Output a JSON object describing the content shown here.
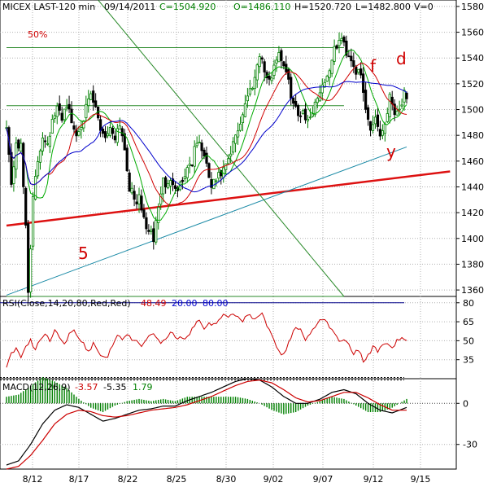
{
  "colors": {
    "up": "#008000",
    "down": "#000000",
    "sma_short": "#00aa00",
    "sma_mid": "#d00000",
    "sma_long": "#0000cc",
    "support_red": "#dd1111",
    "trend_blue": "#1a8aa6",
    "channel_green": "#2a8a2a",
    "rsi": "#cc0000",
    "macd": "#000000",
    "signal": "#cc0000",
    "hist": "#008000",
    "grid": "#b0b0b0",
    "ref_blue": "#000088"
  },
  "header": {
    "symbol": "MICEX LAST-120 min",
    "date": "09/14/2011",
    "close": "C=1504.920",
    "open": "O=1486.110",
    "high": "H=1520.720",
    "low": "L=1482.800",
    "volume": "V=0"
  },
  "annotations": {
    "pct": "50%",
    "wave5": "5",
    "wave_f": "f",
    "wave_d": "d",
    "wave_y": "y"
  },
  "chart_data": [
    {
      "type": "candlestick",
      "title": "MICEX LAST-120 min",
      "x_ticks": [
        "8/12",
        "8/17",
        "8/22",
        "8/25",
        "8/30",
        "9/02",
        "9/07",
        "9/12",
        "9/15"
      ],
      "y_ticks": [
        1360,
        1380,
        1400,
        1420,
        1440,
        1460,
        1480,
        1500,
        1520,
        1540,
        1560,
        1580
      ],
      "ylim": [
        1355,
        1585
      ],
      "grid": true,
      "anchors": [
        [
          0,
          1490
        ],
        [
          2,
          1440
        ],
        [
          4,
          1475
        ],
        [
          6,
          1470
        ],
        [
          8,
          1410
        ],
        [
          9,
          1360
        ],
        [
          11,
          1430
        ],
        [
          13,
          1460
        ],
        [
          15,
          1480
        ],
        [
          17,
          1475
        ],
        [
          19,
          1490
        ],
        [
          21,
          1500
        ],
        [
          23,
          1495
        ],
        [
          25,
          1505
        ],
        [
          27,
          1490
        ],
        [
          29,
          1480
        ],
        [
          31,
          1490
        ],
        [
          33,
          1500
        ],
        [
          35,
          1510
        ],
        [
          37,
          1500
        ],
        [
          39,
          1485
        ],
        [
          41,
          1480
        ],
        [
          43,
          1485
        ],
        [
          45,
          1480
        ],
        [
          47,
          1490
        ],
        [
          49,
          1470
        ],
        [
          51,
          1440
        ],
        [
          53,
          1430
        ],
        [
          55,
          1430
        ],
        [
          57,
          1415
        ],
        [
          59,
          1405
        ],
        [
          61,
          1400
        ],
        [
          63,
          1425
        ],
        [
          65,
          1445
        ],
        [
          67,
          1440
        ],
        [
          69,
          1445
        ],
        [
          71,
          1440
        ],
        [
          73,
          1445
        ],
        [
          75,
          1455
        ],
        [
          77,
          1460
        ],
        [
          79,
          1475
        ],
        [
          81,
          1470
        ],
        [
          83,
          1455
        ],
        [
          85,
          1440
        ],
        [
          87,
          1445
        ],
        [
          89,
          1450
        ],
        [
          91,
          1455
        ],
        [
          93,
          1465
        ],
        [
          95,
          1480
        ],
        [
          97,
          1490
        ],
        [
          99,
          1505
        ],
        [
          101,
          1515
        ],
        [
          103,
          1525
        ],
        [
          105,
          1545
        ],
        [
          107,
          1530
        ],
        [
          109,
          1520
        ],
        [
          111,
          1535
        ],
        [
          113,
          1545
        ],
        [
          115,
          1535
        ],
        [
          117,
          1520
        ],
        [
          119,
          1505
        ],
        [
          121,
          1495
        ],
        [
          123,
          1500
        ],
        [
          125,
          1490
        ],
        [
          127,
          1500
        ],
        [
          129,
          1510
        ],
        [
          131,
          1520
        ],
        [
          133,
          1525
        ],
        [
          135,
          1540
        ],
        [
          137,
          1550
        ],
        [
          139,
          1555
        ],
        [
          141,
          1545
        ],
        [
          143,
          1540
        ],
        [
          145,
          1530
        ],
        [
          147,
          1525
        ],
        [
          149,
          1500
        ],
        [
          151,
          1485
        ],
        [
          153,
          1495
        ],
        [
          155,
          1480
        ],
        [
          157,
          1490
        ],
        [
          159,
          1510
        ],
        [
          161,
          1500
        ],
        [
          163,
          1500
        ],
        [
          165,
          1512
        ],
        [
          166,
          1505
        ]
      ],
      "annotation_lines": [
        {
          "name": "resistance-1548",
          "from": [
            0,
            1548
          ],
          "to": [
            140,
            1548
          ]
        },
        {
          "name": "resistance-1503",
          "from": [
            0,
            1503
          ],
          "to": [
            140,
            1503
          ]
        },
        {
          "name": "base-1355",
          "from": [
            0,
            1355
          ],
          "to": [
            140,
            1355
          ]
        },
        {
          "name": "support-red",
          "from": [
            0,
            1410
          ],
          "to": [
            184,
            1452
          ]
        },
        {
          "name": "trend-blue",
          "from": [
            0,
            1356
          ],
          "to": [
            166,
            1471
          ]
        },
        {
          "name": "channel-diagonal",
          "from": [
            38,
            1585
          ],
          "to": [
            140,
            1355
          ]
        }
      ]
    },
    {
      "type": "line",
      "title": "RSI(Close,14,20,80,Red,Red)",
      "value": "48.49",
      "lower_label": "20.00",
      "upper_label": "80.00",
      "y_ticks": [
        35,
        50,
        65,
        80
      ],
      "ylim": [
        20,
        85
      ],
      "anchors": [
        [
          0,
          28
        ],
        [
          2,
          40
        ],
        [
          4,
          43
        ],
        [
          6,
          38
        ],
        [
          8,
          47
        ],
        [
          10,
          50
        ],
        [
          12,
          42
        ],
        [
          14,
          52
        ],
        [
          16,
          56
        ],
        [
          18,
          49
        ],
        [
          20,
          59
        ],
        [
          22,
          52
        ],
        [
          24,
          46
        ],
        [
          26,
          56
        ],
        [
          28,
          59
        ],
        [
          30,
          53
        ],
        [
          32,
          48
        ],
        [
          34,
          41
        ],
        [
          36,
          48
        ],
        [
          38,
          42
        ],
        [
          40,
          37
        ],
        [
          42,
          38
        ],
        [
          44,
          46
        ],
        [
          46,
          55
        ],
        [
          48,
          52
        ],
        [
          50,
          56
        ],
        [
          52,
          51
        ],
        [
          54,
          50
        ],
        [
          56,
          46
        ],
        [
          58,
          52
        ],
        [
          60,
          56
        ],
        [
          62,
          53
        ],
        [
          64,
          48
        ],
        [
          66,
          51
        ],
        [
          68,
          57
        ],
        [
          70,
          53
        ],
        [
          72,
          52
        ],
        [
          74,
          51
        ],
        [
          76,
          56
        ],
        [
          78,
          63
        ],
        [
          80,
          66
        ],
        [
          82,
          60
        ],
        [
          84,
          64
        ],
        [
          86,
          63
        ],
        [
          88,
          67
        ],
        [
          90,
          71
        ],
        [
          92,
          69
        ],
        [
          94,
          72
        ],
        [
          96,
          69
        ],
        [
          98,
          65
        ],
        [
          100,
          71
        ],
        [
          102,
          68
        ],
        [
          104,
          69
        ],
        [
          106,
          71
        ],
        [
          108,
          62
        ],
        [
          110,
          55
        ],
        [
          112,
          44
        ],
        [
          114,
          39
        ],
        [
          116,
          42
        ],
        [
          118,
          53
        ],
        [
          120,
          61
        ],
        [
          122,
          58
        ],
        [
          124,
          51
        ],
        [
          126,
          55
        ],
        [
          128,
          61
        ],
        [
          130,
          68
        ],
        [
          132,
          66
        ],
        [
          134,
          61
        ],
        [
          136,
          56
        ],
        [
          138,
          50
        ],
        [
          140,
          52
        ],
        [
          142,
          47
        ],
        [
          144,
          39
        ],
        [
          146,
          43
        ],
        [
          148,
          34
        ],
        [
          150,
          38
        ],
        [
          152,
          45
        ],
        [
          154,
          42
        ],
        [
          156,
          46
        ],
        [
          158,
          49
        ],
        [
          160,
          44
        ],
        [
          162,
          50
        ],
        [
          164,
          52
        ],
        [
          166,
          49
        ]
      ]
    },
    {
      "type": "line",
      "title": "MACD(12,26,9)",
      "macd_value": "-3.57",
      "signal_value": "-5.35",
      "hist_value": "1.79",
      "y_ticks": [
        -30,
        0
      ],
      "ylim": [
        -48,
        18
      ],
      "macd_anchors": [
        [
          0,
          -45
        ],
        [
          5,
          -42
        ],
        [
          10,
          -30
        ],
        [
          15,
          -15
        ],
        [
          20,
          -5
        ],
        [
          25,
          -1
        ],
        [
          30,
          -3
        ],
        [
          35,
          -8
        ],
        [
          40,
          -13
        ],
        [
          45,
          -11
        ],
        [
          50,
          -8
        ],
        [
          55,
          -5
        ],
        [
          60,
          -4
        ],
        [
          65,
          -2
        ],
        [
          70,
          -2
        ],
        [
          75,
          2
        ],
        [
          80,
          5
        ],
        [
          85,
          8
        ],
        [
          90,
          12
        ],
        [
          95,
          16
        ],
        [
          100,
          18
        ],
        [
          105,
          17
        ],
        [
          110,
          12
        ],
        [
          115,
          5
        ],
        [
          120,
          0
        ],
        [
          125,
          0
        ],
        [
          130,
          3
        ],
        [
          135,
          8
        ],
        [
          140,
          10
        ],
        [
          145,
          7
        ],
        [
          150,
          0
        ],
        [
          155,
          -5
        ],
        [
          160,
          -7
        ],
        [
          166,
          -3
        ]
      ],
      "signal_anchors": [
        [
          0,
          -48
        ],
        [
          5,
          -46
        ],
        [
          10,
          -38
        ],
        [
          15,
          -27
        ],
        [
          20,
          -15
        ],
        [
          25,
          -8
        ],
        [
          30,
          -5
        ],
        [
          35,
          -6
        ],
        [
          40,
          -9
        ],
        [
          45,
          -10
        ],
        [
          50,
          -9
        ],
        [
          55,
          -7
        ],
        [
          60,
          -5
        ],
        [
          65,
          -4
        ],
        [
          70,
          -3
        ],
        [
          75,
          -1
        ],
        [
          80,
          2
        ],
        [
          85,
          5
        ],
        [
          90,
          9
        ],
        [
          95,
          13
        ],
        [
          100,
          16
        ],
        [
          105,
          17
        ],
        [
          110,
          15
        ],
        [
          115,
          10
        ],
        [
          120,
          4
        ],
        [
          125,
          1
        ],
        [
          130,
          2
        ],
        [
          135,
          5
        ],
        [
          140,
          8
        ],
        [
          145,
          8
        ],
        [
          150,
          4
        ],
        [
          155,
          -1
        ],
        [
          160,
          -5
        ],
        [
          166,
          -5
        ]
      ]
    }
  ]
}
